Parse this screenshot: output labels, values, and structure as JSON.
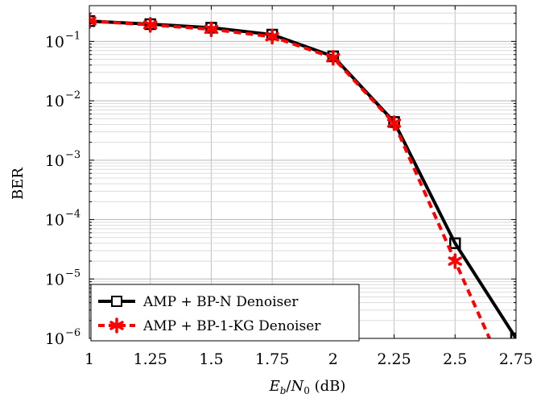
{
  "chart_data": {
    "type": "line",
    "title": "",
    "xlabel": "E_b/N_0 (dB)",
    "xlabel_parts": {
      "e": "E",
      "b": "b",
      "slash": "/",
      "n": "N",
      "zero": "0",
      "unit": " (dB)"
    },
    "ylabel": "BER",
    "yscale": "log",
    "xlim": [
      1,
      2.75
    ],
    "ylim": [
      1e-06,
      0.4
    ],
    "x_ticks": [
      1,
      1.25,
      1.5,
      1.75,
      2,
      2.25,
      2.5,
      2.75
    ],
    "x_tick_labels": [
      "1",
      "1.25",
      "1.5",
      "1.75",
      "2",
      "2.25",
      "2.5",
      "2.75"
    ],
    "y_ticks": [
      {
        "value": 1e-06,
        "base": "10",
        "exp": "−6"
      },
      {
        "value": 1e-05,
        "base": "10",
        "exp": "−5"
      },
      {
        "value": 0.0001,
        "base": "10",
        "exp": "−4"
      },
      {
        "value": 0.001,
        "base": "10",
        "exp": "−3"
      },
      {
        "value": 0.01,
        "base": "10",
        "exp": "−2"
      },
      {
        "value": 0.1,
        "base": "10",
        "exp": "−1"
      }
    ],
    "grid": true,
    "legend_position": "bottom-left",
    "series": [
      {
        "name": "AMP + BP-N Denoiser",
        "color": "#000000",
        "marker": "square",
        "line_style": "solid",
        "x": [
          1,
          1.25,
          1.5,
          1.75,
          2,
          2.25,
          2.5,
          2.75
        ],
        "y": [
          0.22,
          0.195,
          0.17,
          0.13,
          0.056,
          0.0044,
          4e-05,
          1e-06
        ]
      },
      {
        "name": "AMP + BP-1-KG Denoiser",
        "color": "#ff0000",
        "marker": "asterisk",
        "line_style": "dashed",
        "x": [
          1,
          1.25,
          1.5,
          1.75,
          2,
          2.25,
          2.5,
          2.75
        ],
        "y": [
          0.22,
          0.19,
          0.16,
          0.12,
          0.053,
          0.0042,
          2e-05,
          1e-07
        ]
      }
    ]
  }
}
